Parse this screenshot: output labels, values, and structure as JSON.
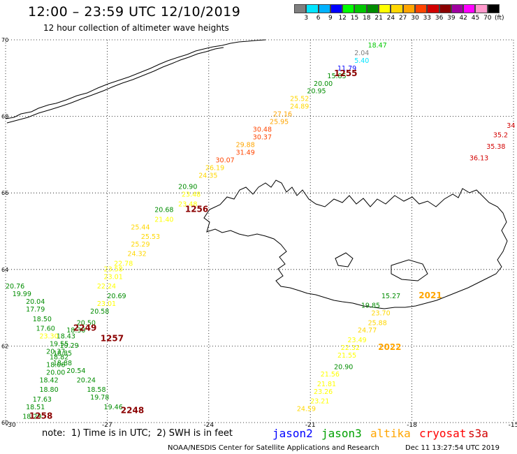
{
  "header": {
    "title": "12:00 – 23:59 UTC 12/10/2019",
    "subtitle": "12 hour collection of altimeter wave heights"
  },
  "colorbar": {
    "labels": [
      "3",
      "6",
      "9",
      "12",
      "15",
      "18",
      "21",
      "24",
      "27",
      "30",
      "33",
      "36",
      "39",
      "42",
      "45",
      "70"
    ],
    "unit": "(ft)",
    "colors": [
      "#7f7f7f",
      "#00e5ff",
      "#00b2ff",
      "#0000ff",
      "#00ff00",
      "#00c800",
      "#008c00",
      "#ffff00",
      "#ffd700",
      "#ffa500",
      "#ff4500",
      "#d20000",
      "#8b0000",
      "#a000a0",
      "#ff00ff",
      "#ff99cc",
      "#000000"
    ]
  },
  "map": {
    "lat_labels": [
      "70",
      "68",
      "66",
      "64",
      "62",
      "60"
    ],
    "lon_labels": [
      "-30",
      "-27",
      "-24",
      "-21",
      "-18",
      "-15"
    ]
  },
  "time_labels": [
    {
      "text": "1255",
      "color": "#8b0000",
      "lon": -20.3,
      "lat": 69.05
    },
    {
      "text": "1256",
      "color": "#8b0000",
      "lon": -24.7,
      "lat": 65.5
    },
    {
      "text": "2249",
      "color": "#8b0000",
      "lon": -28.0,
      "lat": 62.4
    },
    {
      "text": "1257",
      "color": "#8b0000",
      "lon": -27.2,
      "lat": 62.13
    },
    {
      "text": "1258",
      "color": "#8b0000",
      "lon": -29.3,
      "lat": 60.1
    },
    {
      "text": "2248",
      "color": "#8b0000",
      "lon": -26.6,
      "lat": 60.25
    },
    {
      "text": "2021",
      "color": "#ffa500",
      "lon": -17.8,
      "lat": 63.25
    },
    {
      "text": "2022",
      "color": "#ffa500",
      "lon": -19.0,
      "lat": 61.9
    }
  ],
  "swh_tracks": [
    {
      "name": "cryosat",
      "points": [
        {
          "lon": -19.3,
          "lat": 69.8,
          "v": "18.47",
          "c": "#00c800"
        },
        {
          "lon": -19.7,
          "lat": 69.6,
          "v": "2.04",
          "c": "#7f7f7f"
        },
        {
          "lon": -19.7,
          "lat": 69.4,
          "v": "5.40",
          "c": "#00e5ff"
        },
        {
          "lon": -20.2,
          "lat": 69.2,
          "v": "11.79",
          "c": "#0000ff"
        },
        {
          "lon": -20.5,
          "lat": 69.0,
          "v": "15.85",
          "c": "#008c00"
        },
        {
          "lon": -20.9,
          "lat": 68.8,
          "v": "20.00",
          "c": "#008c00"
        },
        {
          "lon": -21.1,
          "lat": 68.6,
          "v": "20.95",
          "c": "#008c00"
        },
        {
          "lon": -21.6,
          "lat": 68.4,
          "v": "25.52",
          "c": "#ffd700"
        },
        {
          "lon": -21.6,
          "lat": 68.2,
          "v": "24.89",
          "c": "#ffd700"
        },
        {
          "lon": -22.1,
          "lat": 68.0,
          "v": "27.16",
          "c": "#ffa500"
        },
        {
          "lon": -22.2,
          "lat": 67.8,
          "v": "25.95",
          "c": "#ffa500"
        },
        {
          "lon": -22.7,
          "lat": 67.6,
          "v": "30.48",
          "c": "#ff4500"
        },
        {
          "lon": -22.7,
          "lat": 67.4,
          "v": "30.37",
          "c": "#ff4500"
        },
        {
          "lon": -23.2,
          "lat": 67.2,
          "v": "29.88",
          "c": "#ffa500"
        },
        {
          "lon": -23.2,
          "lat": 67.0,
          "v": "31.49",
          "c": "#ff4500"
        },
        {
          "lon": -23.8,
          "lat": 66.8,
          "v": "30.07",
          "c": "#ff4500"
        },
        {
          "lon": -24.1,
          "lat": 66.6,
          "v": "26.19",
          "c": "#ffd700"
        },
        {
          "lon": -24.3,
          "lat": 66.4,
          "v": "24.35",
          "c": "#ffd700"
        },
        {
          "lon": -24.9,
          "lat": 66.1,
          "v": "20.90",
          "c": "#008c00"
        },
        {
          "lon": -24.8,
          "lat": 65.9,
          "v": "23.48",
          "c": "#ffff00"
        },
        {
          "lon": -24.9,
          "lat": 65.65,
          "v": "23.48",
          "c": "#ffff00"
        },
        {
          "lon": -25.6,
          "lat": 65.5,
          "v": "20.68",
          "c": "#008c00"
        },
        {
          "lon": -25.6,
          "lat": 65.25,
          "v": "21.40",
          "c": "#ffff00"
        },
        {
          "lon": -26.3,
          "lat": 65.05,
          "v": "25.44",
          "c": "#ffd700"
        },
        {
          "lon": -26.0,
          "lat": 64.8,
          "v": "25.53",
          "c": "#ffd700"
        },
        {
          "lon": -26.3,
          "lat": 64.6,
          "v": "25.29",
          "c": "#ffd700"
        },
        {
          "lon": -26.4,
          "lat": 64.35,
          "v": "24.32",
          "c": "#ffd700"
        },
        {
          "lon": -26.8,
          "lat": 64.1,
          "v": "22.78",
          "c": "#ffff00"
        },
        {
          "lon": -27.1,
          "lat": 63.95,
          "v": "23.58",
          "c": "#ffff00"
        },
        {
          "lon": -27.1,
          "lat": 63.75,
          "v": "23.01",
          "c": "#ffff00"
        },
        {
          "lon": -27.3,
          "lat": 63.5,
          "v": "22.24",
          "c": "#ffff00"
        },
        {
          "lon": -27.0,
          "lat": 63.25,
          "v": "20.69",
          "c": "#008c00"
        },
        {
          "lon": -27.3,
          "lat": 63.05,
          "v": "23.01",
          "c": "#ffff00"
        },
        {
          "lon": -27.5,
          "lat": 62.85,
          "v": "20.58",
          "c": "#008c00"
        },
        {
          "lon": -27.9,
          "lat": 62.55,
          "v": "20.50",
          "c": "#008c00"
        },
        {
          "lon": -28.2,
          "lat": 62.35,
          "v": "18.30",
          "c": "#008c00"
        },
        {
          "lon": -28.5,
          "lat": 62.2,
          "v": "18.43",
          "c": "#008c00"
        },
        {
          "lon": -28.4,
          "lat": 61.95,
          "v": "19.29",
          "c": "#008c00"
        },
        {
          "lon": -28.6,
          "lat": 61.75,
          "v": "18.85",
          "c": "#008c00"
        },
        {
          "lon": -28.6,
          "lat": 61.5,
          "v": "18.88",
          "c": "#008c00"
        },
        {
          "lon": -28.2,
          "lat": 61.3,
          "v": "20.54",
          "c": "#008c00"
        },
        {
          "lon": -27.9,
          "lat": 61.05,
          "v": "20.24",
          "c": "#008c00"
        },
        {
          "lon": -27.6,
          "lat": 60.8,
          "v": "18.58",
          "c": "#008c00"
        },
        {
          "lon": -27.5,
          "lat": 60.6,
          "v": "19.78",
          "c": "#008c00"
        },
        {
          "lon": -27.1,
          "lat": 60.35,
          "v": "19.46",
          "c": "#008c00"
        }
      ]
    },
    {
      "name": "jason3",
      "points": [
        {
          "lon": -30.0,
          "lat": 63.5,
          "v": "20.76",
          "c": "#008c00"
        },
        {
          "lon": -29.8,
          "lat": 63.3,
          "v": "19.99",
          "c": "#008c00"
        },
        {
          "lon": -29.4,
          "lat": 63.1,
          "v": "20.04",
          "c": "#008c00"
        },
        {
          "lon": -29.4,
          "lat": 62.9,
          "v": "17.79",
          "c": "#008c00"
        },
        {
          "lon": -29.2,
          "lat": 62.65,
          "v": "18.50",
          "c": "#008c00"
        },
        {
          "lon": -29.1,
          "lat": 62.4,
          "v": "17.60",
          "c": "#008c00"
        },
        {
          "lon": -29.0,
          "lat": 62.2,
          "v": "23.30",
          "c": "#ffff00"
        },
        {
          "lon": -28.7,
          "lat": 62.0,
          "v": "19.55",
          "c": "#008c00"
        },
        {
          "lon": -28.8,
          "lat": 61.8,
          "v": "20.37",
          "c": "#008c00"
        },
        {
          "lon": -28.7,
          "lat": 61.65,
          "v": "18.82",
          "c": "#008c00"
        },
        {
          "lon": -28.8,
          "lat": 61.45,
          "v": "18.06",
          "c": "#008c00"
        },
        {
          "lon": -28.8,
          "lat": 61.25,
          "v": "20.00",
          "c": "#008c00"
        },
        {
          "lon": -29.0,
          "lat": 61.05,
          "v": "18.42",
          "c": "#008c00"
        },
        {
          "lon": -29.0,
          "lat": 60.8,
          "v": "18.80",
          "c": "#008c00"
        },
        {
          "lon": -29.2,
          "lat": 60.55,
          "v": "17.63",
          "c": "#008c00"
        },
        {
          "lon": -29.4,
          "lat": 60.35,
          "v": "18.51",
          "c": "#008c00"
        },
        {
          "lon": -29.5,
          "lat": 60.1,
          "v": "18.29",
          "c": "#008c00"
        }
      ]
    },
    {
      "name": "altika",
      "points": [
        {
          "lon": -18.9,
          "lat": 63.25,
          "v": "15.27",
          "c": "#008c00"
        },
        {
          "lon": -19.5,
          "lat": 63.0,
          "v": "19.85",
          "c": "#008c00"
        },
        {
          "lon": -19.2,
          "lat": 62.8,
          "v": "23.70",
          "c": "#ffd700"
        },
        {
          "lon": -19.3,
          "lat": 62.55,
          "v": "25.88",
          "c": "#ffd700"
        },
        {
          "lon": -19.6,
          "lat": 62.35,
          "v": "24.77",
          "c": "#ffd700"
        },
        {
          "lon": -19.9,
          "lat": 62.1,
          "v": "23.49",
          "c": "#ffff00"
        },
        {
          "lon": -20.1,
          "lat": 61.9,
          "v": "22.32",
          "c": "#ffff00"
        },
        {
          "lon": -20.2,
          "lat": 61.7,
          "v": "21.55",
          "c": "#ffff00"
        },
        {
          "lon": -20.3,
          "lat": 61.4,
          "v": "20.90",
          "c": "#008c00"
        },
        {
          "lon": -20.7,
          "lat": 61.2,
          "v": "21.56",
          "c": "#ffff00"
        },
        {
          "lon": -20.8,
          "lat": 60.95,
          "v": "21.81",
          "c": "#ffff00"
        },
        {
          "lon": -20.9,
          "lat": 60.75,
          "v": "23.26",
          "c": "#ffff00"
        },
        {
          "lon": -21.0,
          "lat": 60.5,
          "v": "23.21",
          "c": "#ffff00"
        },
        {
          "lon": -21.4,
          "lat": 60.3,
          "v": "24.59",
          "c": "#ffd700"
        }
      ]
    },
    {
      "name": "s3a",
      "points": [
        {
          "lon": -15.2,
          "lat": 67.7,
          "v": "34",
          "c": "#d20000"
        },
        {
          "lon": -15.6,
          "lat": 67.45,
          "v": "35.2",
          "c": "#d20000"
        },
        {
          "lon": -15.8,
          "lat": 67.15,
          "v": "35.38",
          "c": "#d20000"
        },
        {
          "lon": -16.3,
          "lat": 66.85,
          "v": "36.13",
          "c": "#d20000"
        }
      ]
    }
  ],
  "footer": {
    "note": "note:  1) Time is in UTC;  2) SWH is in feet",
    "legend": [
      {
        "label": "jason2",
        "color": "#0000ff"
      },
      {
        "label": "jason3",
        "color": "#00a000"
      },
      {
        "label": "altika",
        "color": "#ffa500"
      },
      {
        "label": "cryosat",
        "color": "#ff0000"
      },
      {
        "label": "s3a",
        "color": "#d20000"
      }
    ],
    "credit": "NOAA/NESDIS Center for Satellite Applications and Research",
    "timestamp": "Dec 11 13:27:54 UTC 2019"
  }
}
